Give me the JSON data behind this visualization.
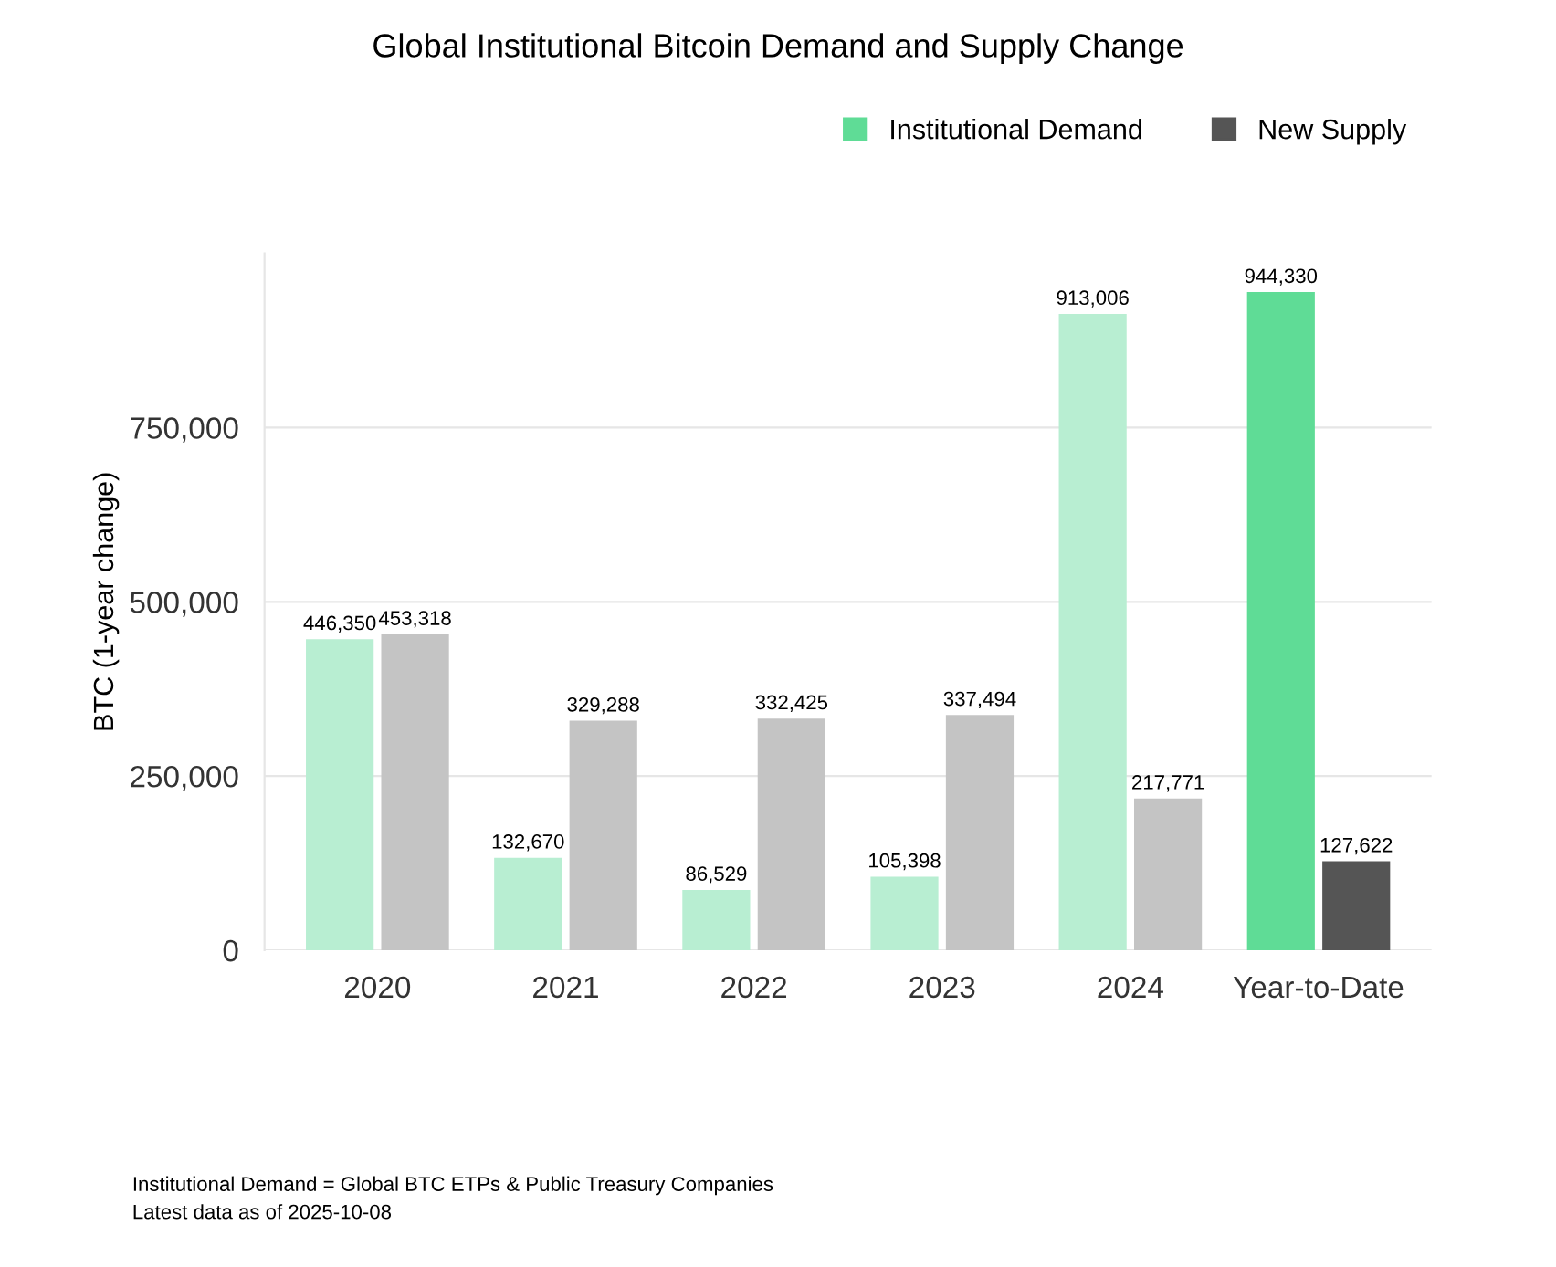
{
  "chart_data": {
    "type": "bar",
    "title": "Global Institutional Bitcoin Demand and Supply Change",
    "ylabel": "BTC (1-year change)",
    "categories": [
      "2020",
      "2021",
      "2022",
      "2023",
      "2024",
      "Year-to-Date"
    ],
    "series": [
      {
        "name": "Institutional Demand",
        "color": "#5fdc96",
        "colors": [
          "#b8eed2",
          "#b8eed2",
          "#b8eed2",
          "#b8eed2",
          "#b8eed2",
          "#5fdc96"
        ],
        "values": [
          446350,
          132670,
          86529,
          105398,
          913006,
          944330
        ],
        "value_labels": [
          "446,350",
          "132,670",
          "86,529",
          "105,398",
          "913,006",
          "944,330"
        ]
      },
      {
        "name": "New Supply",
        "color": "#555555",
        "colors": [
          "#c4c4c4",
          "#c4c4c4",
          "#c4c4c4",
          "#c4c4c4",
          "#c4c4c4",
          "#555555"
        ],
        "values": [
          453318,
          329288,
          332425,
          337494,
          217771,
          127622
        ],
        "value_labels": [
          "453,318",
          "329,288",
          "332,425",
          "337,494",
          "217,771",
          "127,622"
        ]
      }
    ],
    "ylim": [
      0,
      1000000
    ],
    "yticks": [
      {
        "value": 0,
        "label": "0"
      },
      {
        "value": 250000,
        "label": "250,000"
      },
      {
        "value": 500000,
        "label": "500,000"
      },
      {
        "value": 750000,
        "label": "750,000"
      }
    ],
    "grid": "y",
    "legend": "top right",
    "annotations": [
      "Institutional Demand = Global BTC ETPs & Public Treasury Companies",
      "Latest data as of 2025-10-08"
    ]
  }
}
